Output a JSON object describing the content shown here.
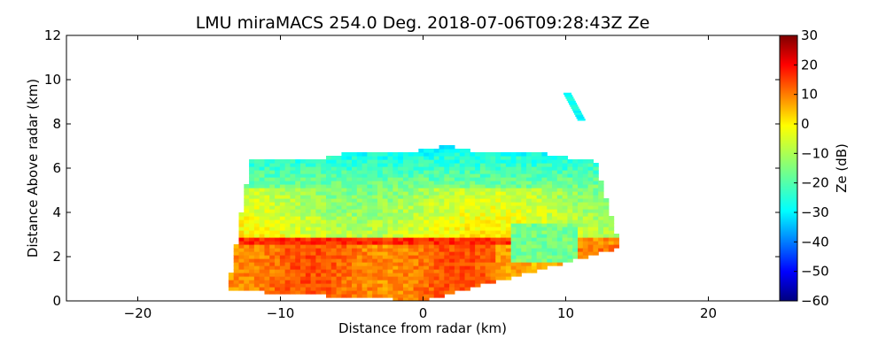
{
  "chart_data": {
    "type": "heatmap",
    "title": "LMU miraMACS 254.0 Deg. 2018-07-06T09:28:43Z  Ze",
    "xlabel": "Distance from radar (km)",
    "ylabel": "Distance Above radar  (km)",
    "xlim": [
      -25,
      25
    ],
    "ylim": [
      0,
      12
    ],
    "x_ticks": [
      -20,
      -10,
      0,
      10,
      20
    ],
    "x_tick_labels": [
      "−20",
      "−10",
      "0",
      "10",
      "20"
    ],
    "y_ticks": [
      0,
      2,
      4,
      6,
      8,
      10,
      12
    ],
    "y_tick_labels": [
      "0",
      "2",
      "4",
      "6",
      "8",
      "10",
      "12"
    ],
    "colorbar": {
      "label": "Ze (dB)",
      "range": [
        -60,
        30
      ],
      "ticks": [
        30,
        20,
        10,
        0,
        -10,
        -20,
        -30,
        -40,
        -50,
        -60
      ],
      "tick_labels": [
        "30",
        "20",
        "10",
        "0",
        "−10",
        "−20",
        "−30",
        "−40",
        "−50",
        "−60"
      ],
      "colormap": "jet"
    },
    "echo_regions": [
      {
        "name": "cloud-top",
        "ze_dB": -22,
        "x_range": [
          -12.5,
          12.5
        ],
        "height_range": [
          5.0,
          7.1
        ]
      },
      {
        "name": "mid-cloud",
        "ze_dB": -8,
        "x_range": [
          -13.0,
          13.0
        ],
        "height_range": [
          3.0,
          5.5
        ]
      },
      {
        "name": "bright-band",
        "ze_dB": 14,
        "x_range": [
          -13.5,
          6.5
        ],
        "height_range": [
          2.6,
          2.9
        ]
      },
      {
        "name": "rain",
        "ze_dB": 8,
        "x_range": [
          -13.8,
          13.8
        ],
        "height_range": [
          0.0,
          2.7
        ]
      },
      {
        "name": "isolated-echo",
        "ze_dB": -25,
        "x_range": [
          10.0,
          11.2
        ],
        "height_range": [
          8.1,
          9.4
        ]
      }
    ]
  }
}
